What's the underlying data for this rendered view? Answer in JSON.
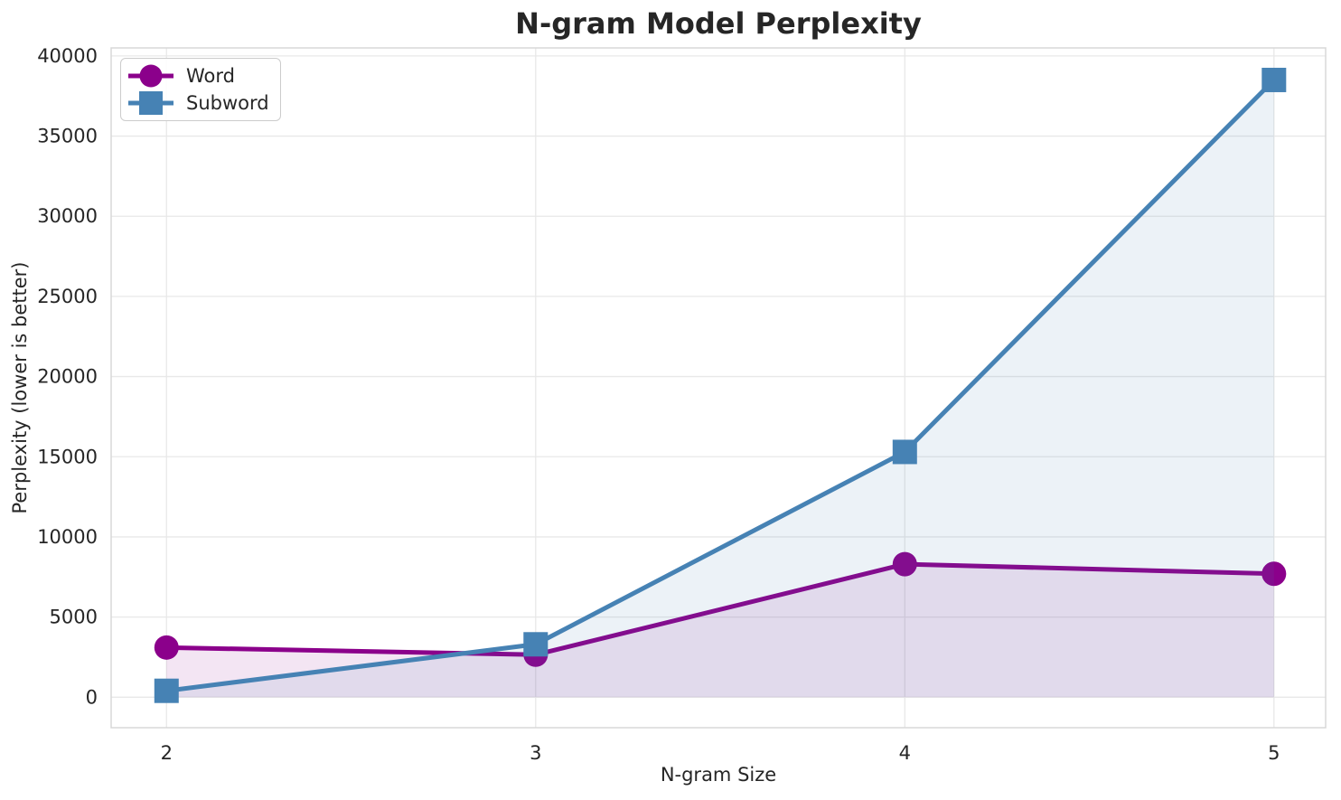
{
  "chart_data": {
    "type": "line",
    "title": "N-gram Model Perplexity",
    "xlabel": "N-gram Size",
    "ylabel": "Perplexity (lower is better)",
    "x": [
      2,
      3,
      4,
      5
    ],
    "series": [
      {
        "name": "Word",
        "values": [
          3100,
          2650,
          8300,
          7700
        ],
        "color": "#8B008B",
        "marker": "circle"
      },
      {
        "name": "Subword",
        "values": [
          400,
          3300,
          15300,
          38500
        ],
        "color": "#4682B4",
        "marker": "square"
      }
    ],
    "x_ticks": [
      2,
      3,
      4,
      5
    ],
    "y_ticks": [
      0,
      5000,
      10000,
      15000,
      20000,
      25000,
      30000,
      35000,
      40000
    ],
    "xlim": [
      1.85,
      5.14
    ],
    "ylim": [
      -1900,
      40500
    ],
    "grid": true,
    "area_fill": true,
    "fill_baseline": 0,
    "fill_opacity": 0.1,
    "line_width": 5,
    "marker_size": 27,
    "legend_position": "upper-left",
    "colors": {
      "grid": "#e8e8e8",
      "spine": "#d8d8d8",
      "text": "#262626",
      "legend_border": "#cccccc"
    }
  }
}
